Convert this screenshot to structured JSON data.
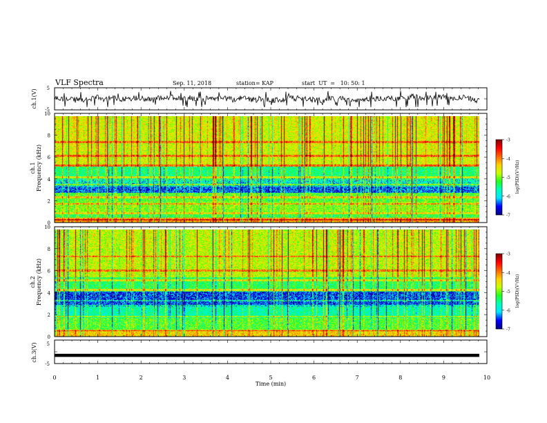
{
  "header": {
    "title": "VLF Spectra",
    "date": "Sep. 11, 2018",
    "station": "station= KAP",
    "start": "start  UT  =   10: 50: 1"
  },
  "colors": {
    "scale": [
      "#00007f",
      "#0000ff",
      "#00e5ff",
      "#00ffbb",
      "#22ff22",
      "#c8ff00",
      "#ffd000",
      "#ff6600",
      "#ff0000",
      "#7f0000"
    ],
    "waveform": "#000000",
    "frame": "#000000"
  },
  "chart_data": [
    {
      "id": "ch1-waveform",
      "type": "line",
      "ylabel": "ch.1(V)",
      "ylim": [
        -5,
        5
      ],
      "y_tick_labels": [
        "5",
        "-5"
      ],
      "xlim": [
        0,
        10
      ],
      "description_series": "noisy waveform between about -4.5 V and 3.5 V, mean near 0 V"
    },
    {
      "id": "ch1-spectrogram",
      "type": "heatmap",
      "ylabel": "ch.1",
      "ylabel2": "Frequency (kHz)",
      "ylim": [
        0,
        10
      ],
      "y_tick_labels": [
        "0",
        "2",
        "4",
        "6",
        "8",
        "10"
      ],
      "xlim": [
        0,
        9.83
      ],
      "colorbar": {
        "label": "log(PSD)(V²/Hz)",
        "range": [
          -7,
          -3
        ],
        "ticks": [
          "-3",
          "-4",
          "-5",
          "-6",
          "-7"
        ]
      },
      "bands": [
        {
          "from": 0.0,
          "to": 0.5,
          "level": -4.2
        },
        {
          "from": 0.5,
          "to": 1.0,
          "level": -5.3
        },
        {
          "from": 1.0,
          "to": 2.0,
          "level": -5.0
        },
        {
          "from": 2.0,
          "to": 2.8,
          "level": -5.2
        },
        {
          "from": 2.8,
          "to": 3.4,
          "level": -6.3
        },
        {
          "from": 3.4,
          "to": 4.0,
          "level": -5.7
        },
        {
          "from": 4.0,
          "to": 5.3,
          "level": -5.5
        },
        {
          "from": 5.3,
          "to": 10.0,
          "level": -4.7
        }
      ],
      "lines_khz": [
        0.3,
        0.9,
        1.8,
        2.4,
        3.6,
        4.3,
        5.4,
        6.3,
        7.6
      ]
    },
    {
      "id": "ch2-spectrogram",
      "type": "heatmap",
      "ylabel": "ch.2",
      "ylabel2": "Frequency (kHz)",
      "ylim": [
        0,
        10
      ],
      "y_tick_labels": [
        "0",
        "2",
        "4",
        "6",
        "8",
        "10"
      ],
      "xlim": [
        0,
        9.83
      ],
      "colorbar": {
        "label": "log(PSD)(V²/Hz)",
        "range": [
          -7,
          -3
        ],
        "ticks": [
          "-3",
          "-4",
          "-5",
          "-6",
          "-7"
        ]
      },
      "bands": [
        {
          "from": 0.0,
          "to": 0.6,
          "level": -4.4
        },
        {
          "from": 0.6,
          "to": 1.8,
          "level": -5.2
        },
        {
          "from": 1.8,
          "to": 3.0,
          "level": -5.7
        },
        {
          "from": 3.0,
          "to": 4.2,
          "level": -6.4
        },
        {
          "from": 4.2,
          "to": 5.6,
          "level": -5.4
        },
        {
          "from": 5.6,
          "to": 10.0,
          "level": -4.8
        }
      ],
      "lines_khz": [
        0.6,
        1.9,
        3.4,
        4.4,
        5.3,
        6.2,
        7.5
      ]
    },
    {
      "id": "ch3-waveform",
      "type": "line",
      "ylabel": "ch.3(V)",
      "ylim": [
        -5,
        5
      ],
      "y_tick_labels": [
        "5",
        "-5"
      ],
      "xlim": [
        0,
        10
      ],
      "constant_value": -1.5
    }
  ],
  "x_axis": {
    "label": "Time (min)",
    "range": [
      0,
      10
    ],
    "tick_labels": [
      "0",
      "1",
      "2",
      "3",
      "4",
      "5",
      "6",
      "7",
      "8",
      "9",
      "10"
    ]
  }
}
